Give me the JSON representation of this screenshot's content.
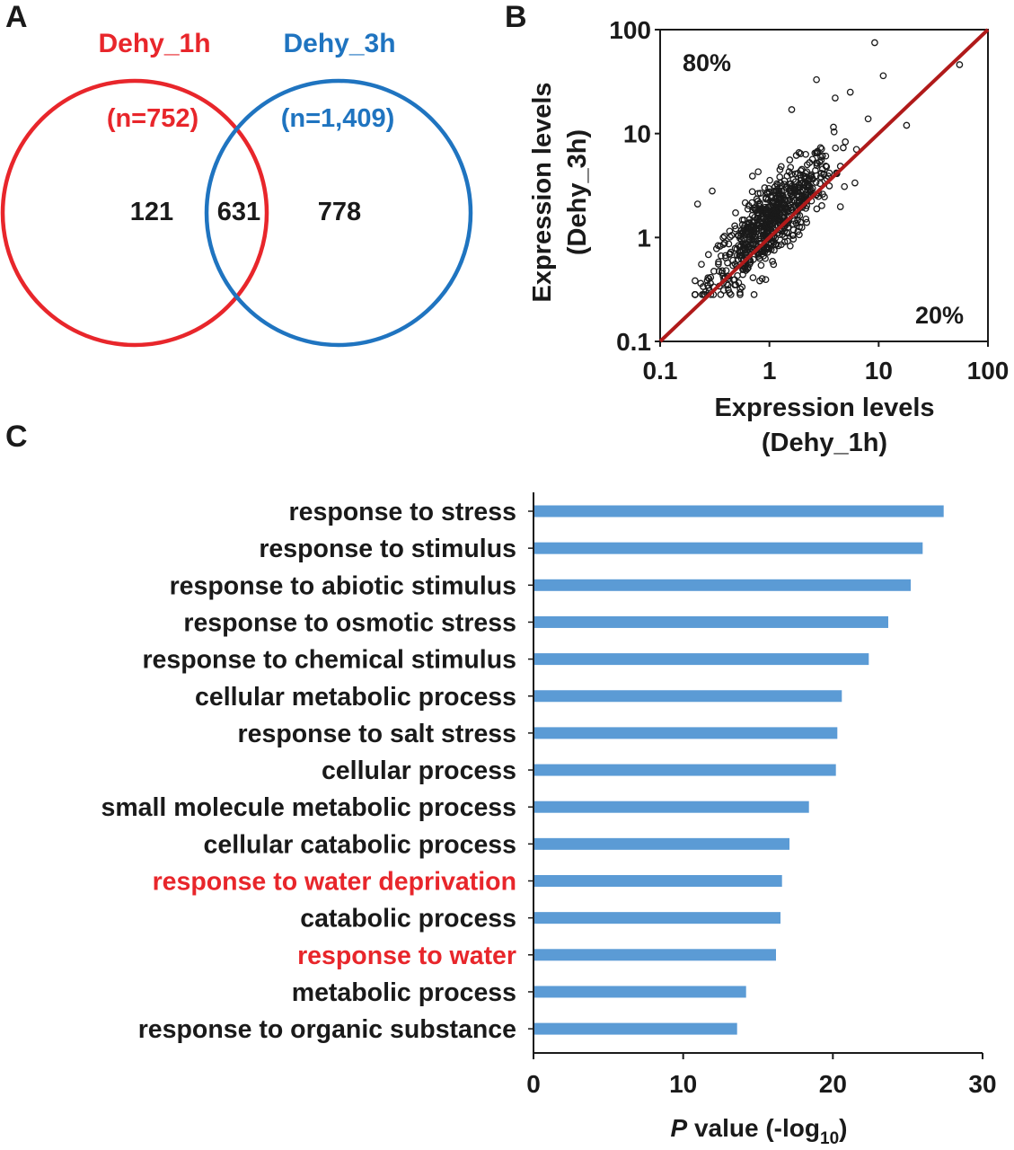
{
  "panels": {
    "a": "A",
    "b": "B",
    "c": "C"
  },
  "colors": {
    "set1": "#e8262b",
    "set2": "#1f74c0",
    "bar": "#5b9bd5",
    "diag": "#b01a1a",
    "highlight": "#e8262b",
    "text": "#1a1a1a"
  },
  "venn": {
    "set1_name": "Dehy_1h",
    "set2_name": "Dehy_3h",
    "set1_count": "(n=752)",
    "set2_count": "(n=1,409)",
    "only1": "121",
    "both": "631",
    "only2": "778"
  },
  "chart_data": [
    {
      "type": "scatter",
      "scale": "log",
      "xlabel": [
        "Expression levels",
        "(Dehy_1h)"
      ],
      "ylabel": [
        "Expression levels",
        "(Dehy_3h)"
      ],
      "xlim": [
        0.1,
        100
      ],
      "ylim": [
        0.1,
        100
      ],
      "ticks": [
        0.1,
        1,
        10,
        100
      ],
      "tick_labels": [
        "0.1",
        "1",
        "10",
        "100"
      ],
      "annotations": {
        "upper_left": "80%",
        "lower_right": "20%"
      },
      "reference_line": "y = x",
      "outliers": [
        [
          9.2,
          75
        ],
        [
          55,
          46
        ],
        [
          11,
          36
        ],
        [
          18,
          12
        ],
        [
          2.7,
          33
        ],
        [
          1.6,
          17
        ],
        [
          0.7,
          3.9
        ],
        [
          0.22,
          2.1
        ],
        [
          0.3,
          2.8
        ],
        [
          5.5,
          25
        ],
        [
          4.0,
          22
        ]
      ],
      "point_count": 700
    },
    {
      "type": "bar",
      "orientation": "horizontal",
      "categories": [
        "response to stress",
        "response to stimulus",
        "response to abiotic stimulus",
        "response to osmotic stress",
        "response to chemical stimulus",
        "cellular metabolic process",
        "response to salt stress",
        "cellular process",
        "small molecule metabolic process",
        "cellular catabolic process",
        "response to water deprivation",
        "catabolic process",
        "response to water",
        "metabolic process",
        "response to organic substance"
      ],
      "values": [
        27.4,
        26.0,
        25.2,
        23.7,
        22.4,
        20.6,
        20.3,
        20.2,
        18.4,
        17.1,
        16.6,
        16.5,
        16.2,
        14.2,
        13.6
      ],
      "highlighted": [
        false,
        false,
        false,
        false,
        false,
        false,
        false,
        false,
        false,
        false,
        true,
        false,
        true,
        false,
        false
      ],
      "xlim": [
        0,
        30
      ],
      "xticks": [
        0,
        10,
        20,
        30
      ],
      "xtick_labels": [
        "0",
        "10",
        "20",
        "30"
      ],
      "xlabel": {
        "italic": "P",
        "main": " value (-log",
        "sub": "10",
        "close": ")"
      }
    }
  ]
}
